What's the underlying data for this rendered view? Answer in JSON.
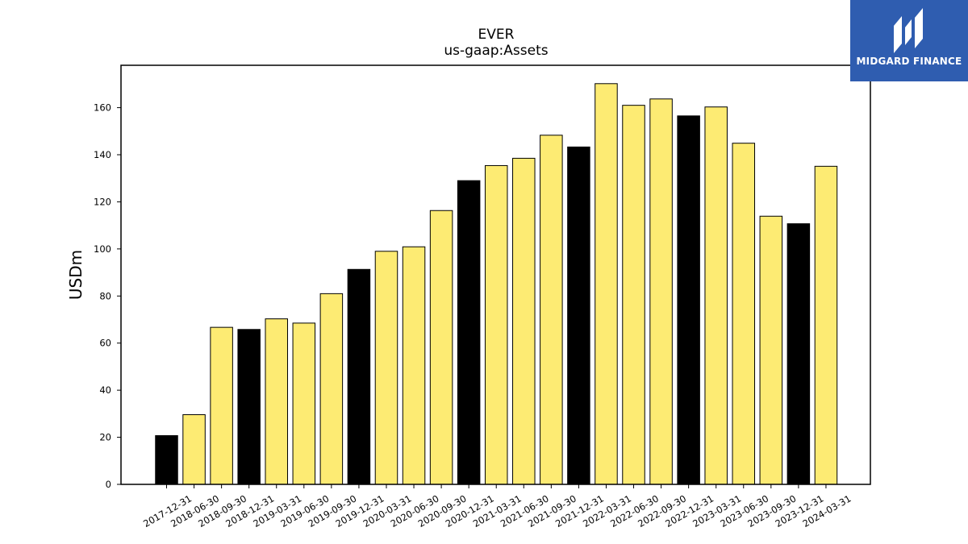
{
  "brand": {
    "name": "MIDGARD FINANCE",
    "bg_color": "#2f5db0",
    "icon": "midgard-logo-icon"
  },
  "chart_data": {
    "type": "bar",
    "title": "EVER",
    "subtitle": "us-gaap:Assets",
    "xlabel": "",
    "ylabel": "USDm",
    "ylim": [
      0,
      178
    ],
    "yticks": [
      0,
      20,
      40,
      60,
      80,
      100,
      120,
      140,
      160
    ],
    "grid": false,
    "colors": {
      "year_end": "#000000",
      "quarter": "#fdeb73",
      "edge": "#000000"
    },
    "categories": [
      "2017-12-31",
      "2018-06-30",
      "2018-09-30",
      "2018-12-31",
      "2019-03-31",
      "2019-06-30",
      "2019-09-30",
      "2019-12-31",
      "2020-03-31",
      "2020-06-30",
      "2020-09-30",
      "2020-12-31",
      "2021-03-31",
      "2021-06-30",
      "2021-09-30",
      "2021-12-31",
      "2022-03-31",
      "2022-06-30",
      "2022-09-30",
      "2022-12-31",
      "2023-03-31",
      "2023-06-30",
      "2023-09-30",
      "2023-12-31",
      "2024-03-31"
    ],
    "values": [
      20.7,
      29.6,
      66.7,
      65.8,
      70.3,
      68.5,
      81.0,
      91.3,
      99.0,
      100.9,
      116.3,
      129.0,
      135.4,
      138.5,
      148.3,
      143.3,
      170.2,
      161.0,
      163.7,
      156.5,
      160.3,
      144.9,
      113.9,
      110.7,
      135.1
    ]
  }
}
